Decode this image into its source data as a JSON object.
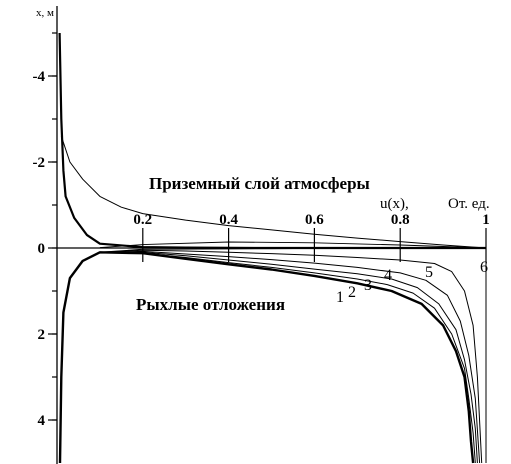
{
  "chart_data": {
    "type": "line",
    "ylabel": "x, м",
    "x_axis_label_unit": "От. ед.",
    "x_axis_label_var": "u(x),",
    "xlim": [
      0,
      1
    ],
    "ylim": [
      5,
      -5
    ],
    "y_inverted": true,
    "x_ticks": [
      {
        "value": 0.2,
        "label": "0.2"
      },
      {
        "value": 0.4,
        "label": "0.4"
      },
      {
        "value": 0.6,
        "label": "0.6"
      },
      {
        "value": 0.8,
        "label": "0.8"
      },
      {
        "value": 1.0,
        "label": "1"
      }
    ],
    "y_ticks": [
      {
        "value": -4,
        "label": "-4"
      },
      {
        "value": -2,
        "label": "-2"
      },
      {
        "value": 0,
        "label": "0"
      },
      {
        "value": 2,
        "label": "2"
      },
      {
        "value": 4,
        "label": "4"
      }
    ],
    "annotations": [
      {
        "text": "Приземный слой атмосферы",
        "x": 0.52,
        "y": -1.45,
        "style": "bold"
      },
      {
        "text": "Рыхлые отложения",
        "x": 0.39,
        "y": 1.35,
        "style": "bold"
      }
    ],
    "series": [
      {
        "name": "1",
        "points": [
          [
            0.007,
            5.0
          ],
          [
            0.01,
            3.0
          ],
          [
            0.015,
            1.5
          ],
          [
            0.03,
            0.7
          ],
          [
            0.06,
            0.3
          ],
          [
            0.1,
            0.1
          ],
          [
            0.2,
            0.12
          ],
          [
            0.3,
            0.25
          ],
          [
            0.4,
            0.38
          ],
          [
            0.5,
            0.5
          ],
          [
            0.6,
            0.65
          ],
          [
            0.7,
            0.82
          ],
          [
            0.78,
            1.0
          ],
          [
            0.85,
            1.3
          ],
          [
            0.9,
            1.8
          ],
          [
            0.93,
            2.4
          ],
          [
            0.95,
            3.0
          ],
          [
            0.96,
            3.8
          ],
          [
            0.965,
            4.5
          ],
          [
            0.97,
            5.0
          ]
        ]
      },
      {
        "name": "2",
        "points": [
          [
            0.1,
            0.1
          ],
          [
            0.2,
            0.12
          ],
          [
            0.3,
            0.22
          ],
          [
            0.4,
            0.34
          ],
          [
            0.5,
            0.45
          ],
          [
            0.6,
            0.58
          ],
          [
            0.7,
            0.72
          ],
          [
            0.77,
            0.85
          ],
          [
            0.83,
            1.05
          ],
          [
            0.88,
            1.4
          ],
          [
            0.92,
            2.0
          ],
          [
            0.95,
            2.8
          ],
          [
            0.96,
            3.5
          ],
          [
            0.97,
            4.3
          ],
          [
            0.975,
            5.0
          ]
        ]
      },
      {
        "name": "3",
        "points": [
          [
            0.1,
            0.1
          ],
          [
            0.2,
            0.1
          ],
          [
            0.3,
            0.18
          ],
          [
            0.4,
            0.28
          ],
          [
            0.5,
            0.38
          ],
          [
            0.6,
            0.49
          ],
          [
            0.7,
            0.6
          ],
          [
            0.78,
            0.72
          ],
          [
            0.84,
            0.92
          ],
          [
            0.89,
            1.3
          ],
          [
            0.93,
            1.9
          ],
          [
            0.95,
            2.6
          ],
          [
            0.965,
            3.4
          ],
          [
            0.975,
            4.2
          ],
          [
            0.98,
            5.0
          ]
        ]
      },
      {
        "name": "4",
        "points": [
          [
            0.1,
            0.1
          ],
          [
            0.2,
            0.08
          ],
          [
            0.3,
            0.14
          ],
          [
            0.4,
            0.2
          ],
          [
            0.5,
            0.27
          ],
          [
            0.6,
            0.35
          ],
          [
            0.7,
            0.45
          ],
          [
            0.8,
            0.58
          ],
          [
            0.86,
            0.75
          ],
          [
            0.91,
            1.1
          ],
          [
            0.94,
            1.7
          ],
          [
            0.96,
            2.5
          ],
          [
            0.975,
            3.5
          ],
          [
            0.985,
            5.0
          ]
        ]
      },
      {
        "name": "5",
        "points": [
          [
            0.1,
            0.1
          ],
          [
            0.2,
            0.05
          ],
          [
            0.3,
            0.07
          ],
          [
            0.4,
            0.1
          ],
          [
            0.5,
            0.13
          ],
          [
            0.6,
            0.17
          ],
          [
            0.7,
            0.22
          ],
          [
            0.8,
            0.28
          ],
          [
            0.88,
            0.36
          ],
          [
            0.92,
            0.55
          ],
          [
            0.95,
            1.0
          ],
          [
            0.97,
            1.8
          ],
          [
            0.98,
            3.0
          ],
          [
            0.99,
            5.0
          ]
        ]
      },
      {
        "name": "6",
        "points": [
          [
            0.1,
            0.1
          ],
          [
            0.2,
            0.03
          ],
          [
            0.4,
            0.02
          ],
          [
            0.6,
            0.01
          ],
          [
            0.8,
            0.005
          ],
          [
            1.0,
            0.0
          ],
          [
            1.0,
            0.5
          ],
          [
            1.0,
            5.0
          ]
        ]
      },
      {
        "name": "",
        "points": [
          [
            0.006,
            -5.0
          ],
          [
            0.01,
            -3.0
          ],
          [
            0.015,
            -1.8
          ],
          [
            0.02,
            -1.2
          ],
          [
            0.04,
            -0.7
          ],
          [
            0.07,
            -0.3
          ],
          [
            0.1,
            -0.1
          ],
          [
            0.2,
            -0.02
          ],
          [
            0.3,
            -0.01
          ],
          [
            0.5,
            0.0
          ],
          [
            0.7,
            0.0
          ],
          [
            1.0,
            0.0
          ]
        ]
      },
      {
        "name": "",
        "points": [
          [
            0.01,
            -2.6
          ],
          [
            0.03,
            -2.0
          ],
          [
            0.06,
            -1.6
          ],
          [
            0.1,
            -1.2
          ],
          [
            0.15,
            -0.95
          ],
          [
            0.2,
            -0.8
          ],
          [
            0.3,
            -0.65
          ],
          [
            0.4,
            -0.52
          ],
          [
            0.5,
            -0.42
          ],
          [
            0.6,
            -0.32
          ],
          [
            0.7,
            -0.23
          ],
          [
            0.8,
            -0.15
          ],
          [
            0.9,
            -0.07
          ],
          [
            1.0,
            0.0
          ]
        ]
      },
      {
        "name": "",
        "points": [
          [
            0.1,
            -0.01
          ],
          [
            0.2,
            -0.08
          ],
          [
            0.4,
            -0.14
          ],
          [
            0.6,
            -0.12
          ],
          [
            0.8,
            -0.07
          ],
          [
            1.0,
            0.0
          ]
        ]
      }
    ]
  }
}
